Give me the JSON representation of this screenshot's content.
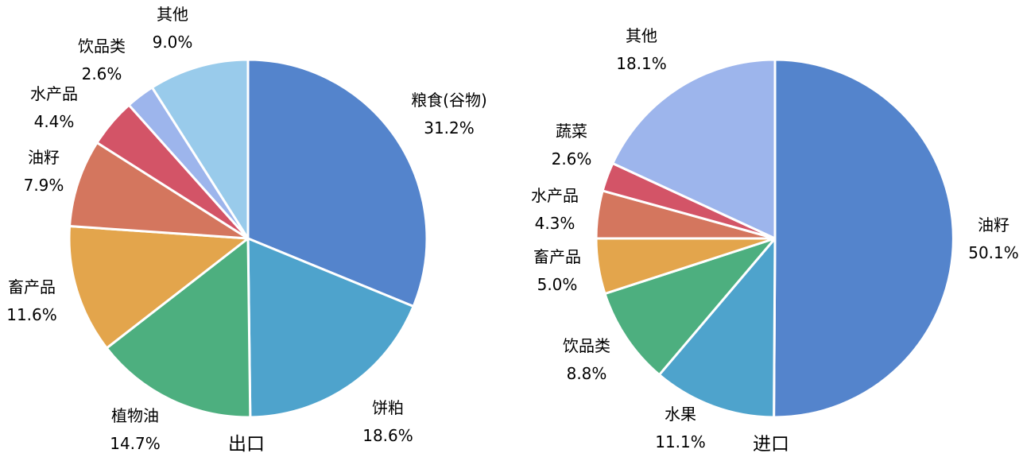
{
  "chart_data": [
    {
      "type": "pie",
      "caption": "出口",
      "slices": [
        {
          "label": "粮食(谷物)",
          "value": 31.2,
          "display": "31.2%",
          "color": "#5484cc"
        },
        {
          "label": "饼粕",
          "value": 18.6,
          "display": "18.6%",
          "color": "#4ea3cc"
        },
        {
          "label": "植物油",
          "value": 14.7,
          "display": "14.7%",
          "color": "#4daf7f"
        },
        {
          "label": "畜产品",
          "value": 11.6,
          "display": "11.6%",
          "color": "#e3a54c"
        },
        {
          "label": "油籽",
          "value": 7.9,
          "display": "7.9%",
          "color": "#d4765e"
        },
        {
          "label": "水产品",
          "value": 4.4,
          "display": "4.4%",
          "color": "#d35467"
        },
        {
          "label": "饮品类",
          "value": 2.6,
          "display": "2.6%",
          "color": "#9db5ec"
        },
        {
          "label": "其他",
          "value": 9.0,
          "display": "9.0%",
          "color": "#99cbeb"
        }
      ]
    },
    {
      "type": "pie",
      "caption": "进口",
      "slices": [
        {
          "label": "油籽",
          "value": 50.1,
          "display": "50.1%",
          "color": "#5484cc"
        },
        {
          "label": "水果",
          "value": 11.1,
          "display": "11.1%",
          "color": "#4ea3cc"
        },
        {
          "label": "饮品类",
          "value": 8.8,
          "display": "8.8%",
          "color": "#4daf7f"
        },
        {
          "label": "畜产品",
          "value": 5.0,
          "display": "5.0%",
          "color": "#e3a54c"
        },
        {
          "label": "水产品",
          "value": 4.3,
          "display": "4.3%",
          "color": "#d4765e"
        },
        {
          "label": "蔬菜",
          "value": 2.6,
          "display": "2.6%",
          "color": "#d35467"
        },
        {
          "label": "其他",
          "value": 18.1,
          "display": "18.1%",
          "color": "#9db5ec"
        }
      ]
    }
  ]
}
